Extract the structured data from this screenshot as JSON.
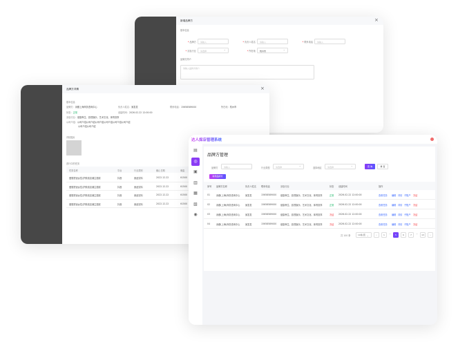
{
  "add_dialog": {
    "title": "新增品牌方",
    "section": "基本信息",
    "fields": [
      {
        "label": "品牌方",
        "placeholder": "请输入",
        "required": true
      },
      {
        "label": "负责人姓名",
        "placeholder": "请输入",
        "required": true
      },
      {
        "label": "联系电话",
        "placeholder": "请输入",
        "required": true
      },
      {
        "label": "涉及行业",
        "placeholder": "请选择",
        "required": true
      },
      {
        "label": "所在地",
        "value": "杭州市",
        "required": true
      }
    ],
    "intro_label": "品牌方简介",
    "intro_placeholder": "请输入品牌方简介"
  },
  "detail_dialog": {
    "title": "品牌方详情",
    "section": "基本信息",
    "brand_label": "品牌方：",
    "brand": "永麒上海商务咨询中心",
    "owner_label": "负责人姓名：",
    "owner": "吴发发",
    "phone_label": "联系电话：",
    "phone": "15658589000",
    "location_label": "所在地：",
    "location": "杭州市",
    "status_label": "状态：",
    "status": "正常",
    "created_label": "创建时间：",
    "created": "2026.02.22 12:00:00",
    "industry_label": "涉及行业：",
    "industry": "健康养生、影视娱乐、艺术文化、体育赛事",
    "intro_label": "公司介绍：",
    "intro_1": "公司介绍公司介绍公司介绍公司介绍公司介绍公司介绍",
    "intro_2": "公司介绍公司介绍",
    "image_label": "详情图片",
    "tasks_label": "进行中的任务",
    "task_columns": [
      "任务名称",
      "平台",
      "行业类别",
      "截止日期",
      "佣金"
    ],
    "tasks": [
      [
        "爱丽舒适女性/护肤线店铺主题赛",
        "抖音",
        "食品饮料",
        "2022.12.22",
        "¥1500"
      ],
      [
        "爱丽舒适女性/护肤线店铺主题赛",
        "抖音",
        "食品饮料",
        "2022.12.22",
        "¥1500"
      ],
      [
        "爱丽舒适女性/护肤线店铺主题赛",
        "抖音",
        "食品饮料",
        "2022.12.22",
        "¥1500"
      ],
      [
        "爱丽舒适女性/护肤线店铺主题赛",
        "抖音",
        "食品饮料",
        "2022.12.22",
        "¥1500"
      ]
    ]
  },
  "app": {
    "title": "达人探店管理系统",
    "page_title": "品牌方管理",
    "sidebar": [
      "document-icon",
      "brand-icon",
      "task-icon",
      "report-icon",
      "calendar-icon",
      "book-icon",
      "settings-icon"
    ],
    "filters": {
      "brand_label": "品牌方",
      "brand_placeholder": "请输入",
      "industry_label": "行业类型",
      "industry_placeholder": "请选择",
      "region_label": "选择地区",
      "region_placeholder": "请选择"
    },
    "search_btn": "查 询",
    "reset_btn": "重 置",
    "add_btn": "新增品牌方",
    "columns": [
      "序号",
      "品牌方名称",
      "负责人姓名",
      "联系电话",
      "涉及行业",
      "状态",
      "创建时间",
      "操作"
    ],
    "rows": [
      {
        "no": "01",
        "name": "永麒(上海)商务咨询中心",
        "owner": "吴发发",
        "phone": "15658589000",
        "industry": "健康养生、影视娱乐、艺术文化、体育赛事",
        "status": "正常",
        "status_color": "#18b566",
        "created": "2026.02.22 12:00:00"
      },
      {
        "no": "02",
        "name": "永麒(上海)商务咨询中心",
        "owner": "吴发发",
        "phone": "15658589000",
        "industry": "健康养生、影视娱乐、艺术文化、体育赛事",
        "status": "正常",
        "status_color": "#18b566",
        "created": "2026.02.22 12:00:00"
      },
      {
        "no": "03",
        "name": "永麒(上海)商务咨询中心",
        "owner": "吴发发",
        "phone": "15658589000",
        "industry": "健康养生、影视娱乐、艺术文化、体育赛事",
        "status": "冻结",
        "status_color": "#f5474d",
        "created": "2026.02.22 12:00:00"
      },
      {
        "no": "04",
        "name": "永麒(上海)商务咨询中心",
        "owner": "吴发发",
        "phone": "15658589000",
        "industry": "健康养生、影视娱乐、艺术文化、体育赛事",
        "status": "冻结",
        "status_color": "#f5474d",
        "created": "2026.02.22 12:00:00"
      }
    ],
    "actions": [
      "查看任务",
      "编辑",
      "详情",
      "子账户",
      "冻结"
    ],
    "pagination": {
      "total": "共 100 条",
      "page_size": "10条/页",
      "pages": [
        "1",
        "5",
        "6",
        "7",
        "13"
      ],
      "current": "5"
    },
    "accent": "#7b3cf5"
  }
}
